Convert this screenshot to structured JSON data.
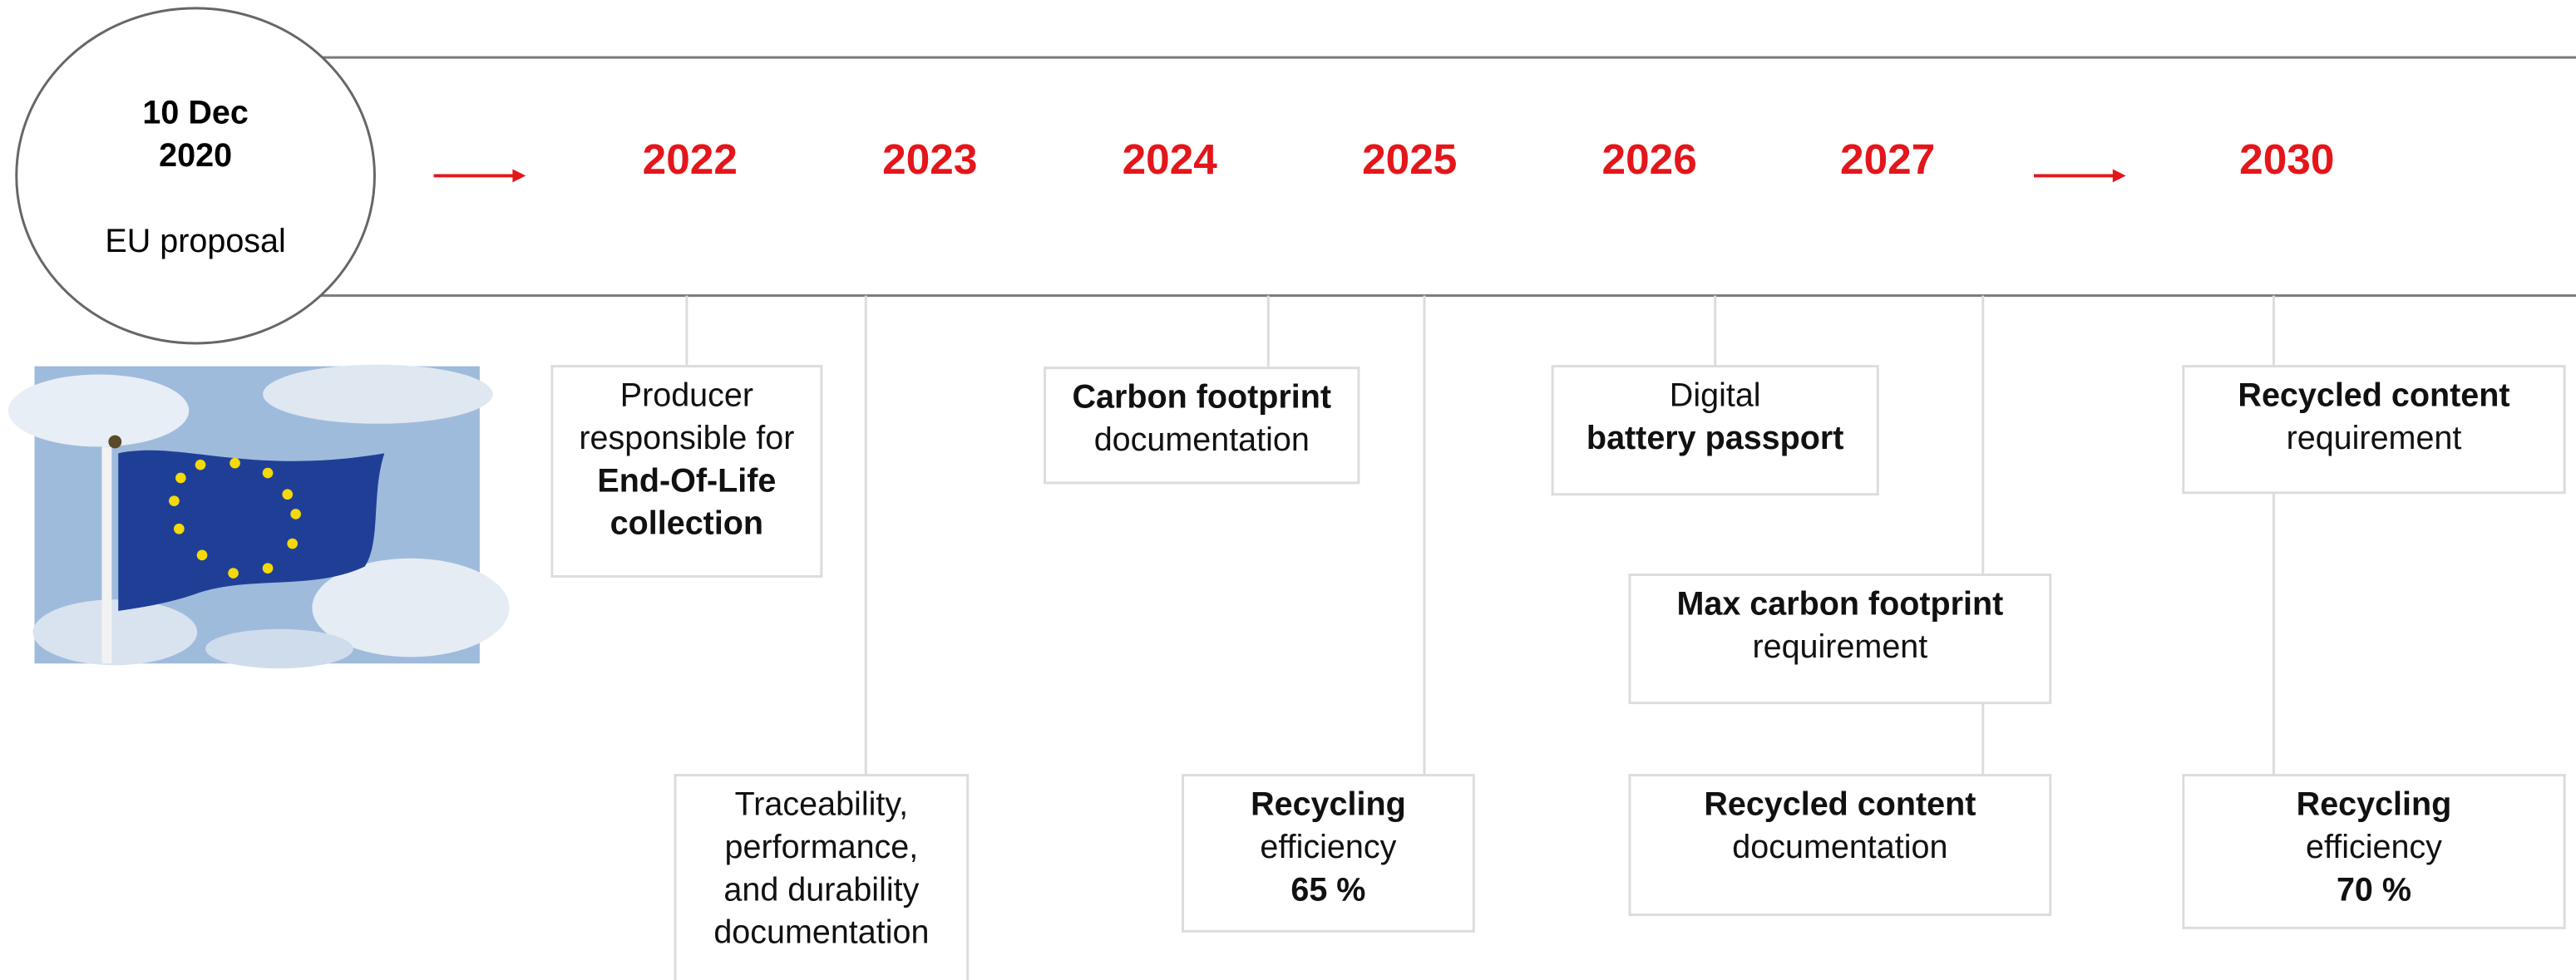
{
  "header": {
    "date_lines": [
      "10 Dec",
      "2020"
    ],
    "label": "EU proposal"
  },
  "years": [
    "2022",
    "2023",
    "2024",
    "2025",
    "2026",
    "2027",
    "2030"
  ],
  "milestones": [
    {
      "lines": [
        {
          "text": "Producer",
          "bold": false
        },
        {
          "text": "responsible for",
          "bold": false
        },
        {
          "text": "End-Of-Life",
          "bold": true
        },
        {
          "text": "collection",
          "bold": true
        }
      ]
    },
    {
      "lines": [
        {
          "text": "Traceability,",
          "bold": false
        },
        {
          "text": "performance,",
          "bold": false
        },
        {
          "text": "and durability",
          "bold": false
        },
        {
          "text": "documentation",
          "bold": false
        }
      ]
    },
    {
      "lines": [
        {
          "text": "Carbon footprint",
          "bold": true
        },
        {
          "text": "documentation",
          "bold": false
        }
      ]
    },
    {
      "lines": [
        {
          "text": "Recycling",
          "bold": true
        },
        {
          "text": "efficiency",
          "bold": false
        },
        {
          "text": "65 %",
          "bold": true
        }
      ]
    },
    {
      "lines": [
        {
          "text": "Digital",
          "bold": false
        },
        {
          "text": "battery passport",
          "bold": true
        }
      ]
    },
    {
      "lines": [
        {
          "text": "Max carbon footprint",
          "bold": true
        },
        {
          "text": "requirement",
          "bold": false
        }
      ]
    },
    {
      "lines": [
        {
          "text": "Recycled content",
          "bold": true
        },
        {
          "text": "documentation",
          "bold": false
        }
      ]
    },
    {
      "lines": [
        {
          "text": "Recycled content",
          "bold": true
        },
        {
          "text": "requirement",
          "bold": false
        }
      ]
    },
    {
      "lines": [
        {
          "text": "Recycling",
          "bold": true
        },
        {
          "text": "efficiency",
          "bold": false
        },
        {
          "text": "70 %",
          "bold": true
        }
      ]
    }
  ]
}
